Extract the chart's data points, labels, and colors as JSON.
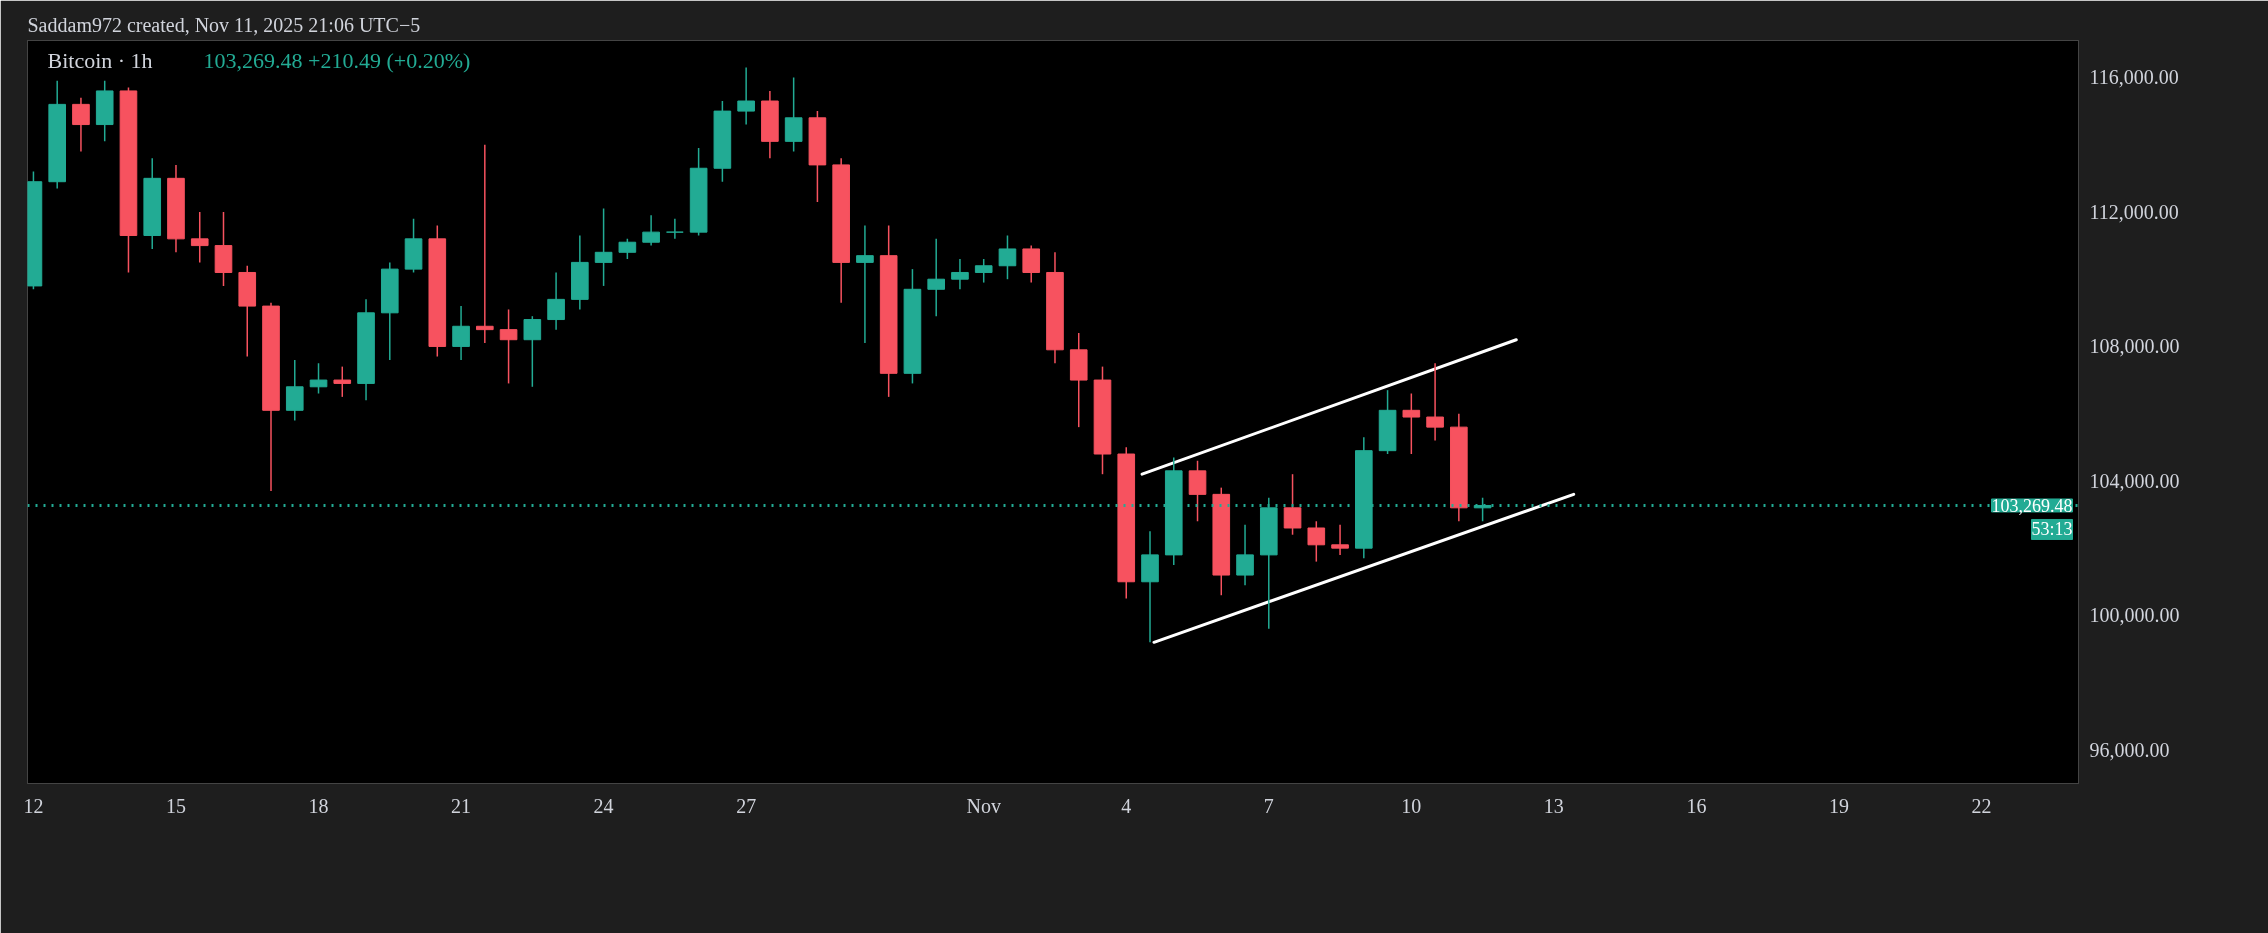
{
  "chart_data": {
    "type": "candlestick",
    "title": "Bitcoin · 1h",
    "subtitle": "103,269.48  +210.49 (+0.20%)",
    "annotations": [
      "Saddam972 created, Nov 11, 2025 21:06 UTC−5",
      "53:13"
    ],
    "x": [
      "2025-10-12T00:00",
      "2025-10-12T12:00",
      "2025-10-13T00:00",
      "2025-10-13T12:00",
      "2025-10-14T00:00",
      "2025-10-14T12:00",
      "2025-10-15T00:00",
      "2025-10-15T12:00",
      "2025-10-16T00:00",
      "2025-10-16T12:00",
      "2025-10-17T00:00",
      "2025-10-17T12:00",
      "2025-10-18T00:00",
      "2025-10-18T12:00",
      "2025-10-19T00:00",
      "2025-10-19T12:00",
      "2025-10-20T00:00",
      "2025-10-20T12:00",
      "2025-10-21T00:00",
      "2025-10-21T12:00",
      "2025-10-22T00:00",
      "2025-10-22T12:00",
      "2025-10-23T00:00",
      "2025-10-23T12:00",
      "2025-10-24T00:00",
      "2025-10-24T12:00",
      "2025-10-25T00:00",
      "2025-10-25T12:00",
      "2025-10-26T00:00",
      "2025-10-26T12:00",
      "2025-10-27T00:00",
      "2025-10-27T12:00",
      "2025-10-28T00:00",
      "2025-10-28T12:00",
      "2025-10-29T00:00",
      "2025-10-29T12:00",
      "2025-10-30T00:00",
      "2025-10-30T12:00",
      "2025-10-31T00:00",
      "2025-10-31T12:00",
      "2025-11-01T00:00",
      "2025-11-01T12:00",
      "2025-11-02T00:00",
      "2025-11-02T12:00",
      "2025-11-03T00:00",
      "2025-11-03T12:00",
      "2025-11-04T00:00",
      "2025-11-04T12:00",
      "2025-11-05T00:00",
      "2025-11-05T12:00",
      "2025-11-06T00:00",
      "2025-11-06T12:00",
      "2025-11-07T00:00",
      "2025-11-07T12:00",
      "2025-11-08T00:00",
      "2025-11-08T12:00",
      "2025-11-09T00:00",
      "2025-11-09T12:00",
      "2025-11-10T00:00",
      "2025-11-10T12:00",
      "2025-11-11T00:00",
      "2025-11-11T12:00"
    ],
    "ohlc": [
      [
        109800,
        113200,
        109700,
        112900
      ],
      [
        112900,
        115900,
        112700,
        115200
      ],
      [
        115200,
        115400,
        113800,
        114600
      ],
      [
        114600,
        115900,
        114100,
        115600
      ],
      [
        115600,
        115700,
        110200,
        111300
      ],
      [
        111300,
        113600,
        110900,
        113000
      ],
      [
        113000,
        113400,
        110800,
        111200
      ],
      [
        111200,
        112000,
        110500,
        111000
      ],
      [
        111000,
        112000,
        109800,
        110200
      ],
      [
        110200,
        110400,
        107700,
        109200
      ],
      [
        109200,
        109300,
        103700,
        106100
      ],
      [
        106100,
        107600,
        105800,
        106800
      ],
      [
        106800,
        107500,
        106600,
        107000
      ],
      [
        107000,
        107400,
        106500,
        106900
      ],
      [
        106900,
        109400,
        106400,
        109000
      ],
      [
        109000,
        110500,
        107600,
        110300
      ],
      [
        110300,
        111800,
        110200,
        111200
      ],
      [
        111200,
        111600,
        107700,
        108000
      ],
      [
        108000,
        109200,
        107600,
        108600
      ],
      [
        108600,
        114000,
        108100,
        108500
      ],
      [
        108500,
        109100,
        106900,
        108200
      ],
      [
        108200,
        108900,
        106800,
        108800
      ],
      [
        108800,
        110200,
        108500,
        109400
      ],
      [
        109400,
        111300,
        109100,
        110500
      ],
      [
        110500,
        112100,
        109800,
        110800
      ],
      [
        110800,
        111200,
        110600,
        111100
      ],
      [
        111100,
        111900,
        111000,
        111400
      ],
      [
        111400,
        111800,
        111200,
        111400
      ],
      [
        111400,
        113900,
        111300,
        113300
      ],
      [
        113300,
        115300,
        112900,
        115000
      ],
      [
        115000,
        116300,
        114600,
        115300
      ],
      [
        115300,
        115600,
        113600,
        114100
      ],
      [
        114100,
        116000,
        113800,
        114800
      ],
      [
        114800,
        115000,
        112300,
        113400
      ],
      [
        113400,
        113600,
        109300,
        110500
      ],
      [
        110500,
        111600,
        108100,
        110700
      ],
      [
        110700,
        111600,
        106500,
        107200
      ],
      [
        107200,
        110300,
        106900,
        109700
      ],
      [
        109700,
        111200,
        108900,
        110000
      ],
      [
        110000,
        110600,
        109700,
        110200
      ],
      [
        110200,
        110600,
        109900,
        110400
      ],
      [
        110400,
        111300,
        110000,
        110900
      ],
      [
        110900,
        111000,
        109900,
        110200
      ],
      [
        110200,
        110800,
        107500,
        107900
      ],
      [
        107900,
        108400,
        105600,
        107000
      ],
      [
        107000,
        107400,
        104200,
        104800
      ],
      [
        104800,
        105000,
        100500,
        101000
      ],
      [
        101000,
        102500,
        99200,
        101800
      ],
      [
        101800,
        104700,
        101500,
        104300
      ],
      [
        104300,
        104600,
        102800,
        103600
      ],
      [
        103600,
        103800,
        100600,
        101200
      ],
      [
        101200,
        102700,
        100900,
        101800
      ],
      [
        101800,
        103500,
        99600,
        103200
      ],
      [
        103200,
        104200,
        102400,
        102600
      ],
      [
        102600,
        102800,
        101600,
        102100
      ],
      [
        102100,
        102700,
        101800,
        102000
      ],
      [
        102000,
        105300,
        101700,
        104900
      ],
      [
        104900,
        106700,
        104800,
        106100
      ],
      [
        106100,
        106600,
        104800,
        105900
      ],
      [
        105900,
        107500,
        105200,
        105600
      ],
      [
        105600,
        106000,
        102800,
        103200
      ],
      [
        103200,
        103500,
        102800,
        103269.48
      ]
    ],
    "colors": [
      "#22ab94",
      "#22ab94",
      "#f7525f",
      "#22ab94",
      "#f7525f",
      "#22ab94",
      "#f7525f",
      "#f7525f",
      "#f7525f",
      "#f7525f",
      "#f7525f",
      "#22ab94",
      "#22ab94",
      "#f7525f",
      "#22ab94",
      "#22ab94",
      "#22ab94",
      "#f7525f",
      "#22ab94",
      "#f7525f",
      "#f7525f",
      "#22ab94",
      "#22ab94",
      "#22ab94",
      "#22ab94",
      "#22ab94",
      "#22ab94",
      "#22ab94",
      "#22ab94",
      "#22ab94",
      "#22ab94",
      "#f7525f",
      "#22ab94",
      "#f7525f",
      "#f7525f",
      "#22ab94",
      "#f7525f",
      "#22ab94",
      "#22ab94",
      "#22ab94",
      "#22ab94",
      "#22ab94",
      "#f7525f",
      "#f7525f",
      "#f7525f",
      "#f7525f",
      "#f7525f",
      "#22ab94",
      "#22ab94",
      "#f7525f",
      "#f7525f",
      "#22ab94",
      "#22ab94",
      "#f7525f",
      "#f7525f",
      "#f7525f",
      "#22ab94",
      "#22ab94",
      "#f7525f",
      "#f7525f",
      "#f7525f",
      "#22ab94"
    ],
    "series": [
      {
        "type": "line",
        "color": "#ffffff",
        "x": [
          "2025-11-04T08:00",
          "2025-11-12T05:00"
        ],
        "values": [
          104200,
          108200
        ]
      },
      {
        "type": "line",
        "color": "#ffffff",
        "x": [
          "2025-11-04T14:00",
          "2025-11-13T10:00"
        ],
        "values": [
          99200,
          103600
        ]
      }
    ],
    "ref_lines": [
      {
        "axis": "y",
        "value": 103269.48,
        "label": "103,269.48",
        "color": "#22ab94",
        "line_style": "dotted"
      }
    ],
    "xlim": [
      "2025-10-11T21:00",
      "2025-11-24T01:00"
    ],
    "xticks": [
      {
        "value": "2025-10-12",
        "label": "12"
      },
      {
        "value": "2025-10-15",
        "label": "15"
      },
      {
        "value": "2025-10-18",
        "label": "18"
      },
      {
        "value": "2025-10-21",
        "label": "21"
      },
      {
        "value": "2025-10-24",
        "label": "24"
      },
      {
        "value": "2025-10-27",
        "label": "27"
      },
      {
        "value": "2025-11-01",
        "label": "Nov"
      },
      {
        "value": "2025-11-04",
        "label": "4"
      },
      {
        "value": "2025-11-07",
        "label": "7"
      },
      {
        "value": "2025-11-10",
        "label": "10"
      },
      {
        "value": "2025-11-13",
        "label": "13"
      },
      {
        "value": "2025-11-16",
        "label": "16"
      },
      {
        "value": "2025-11-19",
        "label": "19"
      },
      {
        "value": "2025-11-22",
        "label": "22"
      }
    ],
    "ylim": [
      95000,
      117100
    ],
    "yticks": [
      {
        "value": 96000,
        "label": "96,000.00"
      },
      {
        "value": 100000,
        "label": "100,000.00"
      },
      {
        "value": 104000,
        "label": "104,000.00"
      },
      {
        "value": 108000,
        "label": "108,000.00"
      },
      {
        "value": 112000,
        "label": "112,000.00"
      },
      {
        "value": 116000,
        "label": "116,000.00"
      }
    ],
    "grid": false
  }
}
